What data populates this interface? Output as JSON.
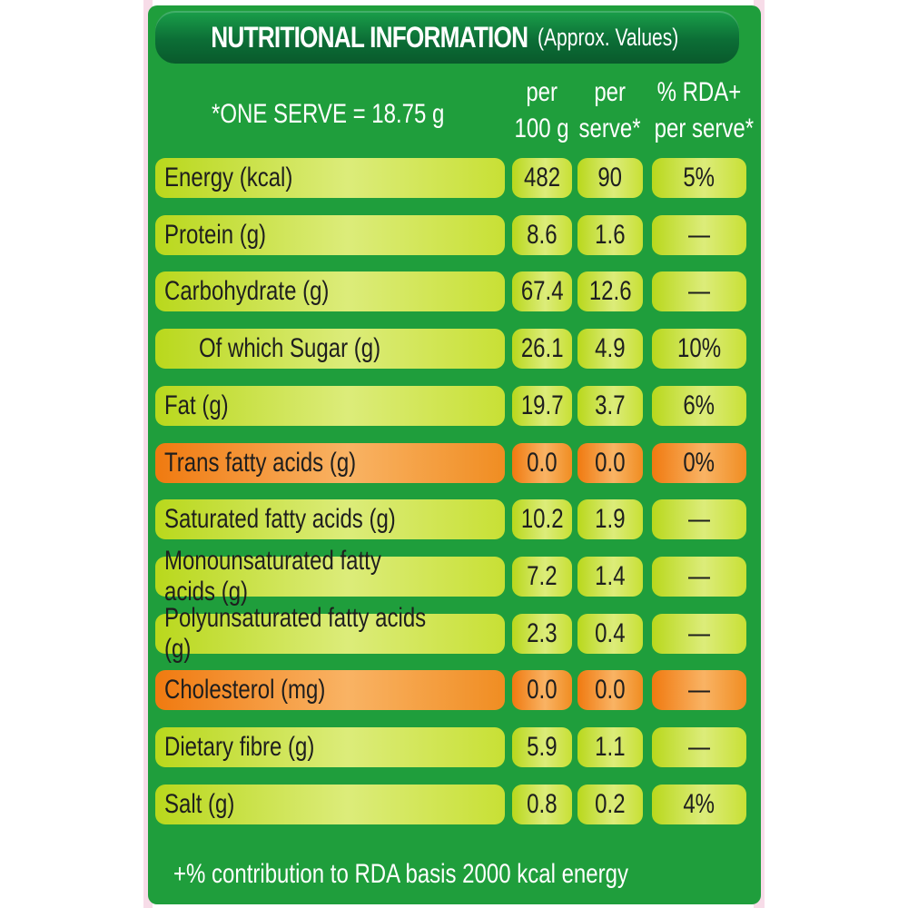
{
  "header": {
    "title": "NUTRITIONAL INFORMATION",
    "subtitle": "(Approx. Values)"
  },
  "serve_note": "*ONE SERVE = 18.75 g",
  "columns": {
    "per100_line1": "per",
    "per100_line2": "100 g",
    "perserve_line1": "per",
    "perserve_line2": "serve*",
    "rda_line1": "% RDA+",
    "rda_line2": "per serve*"
  },
  "rows": [
    {
      "label": "Energy (kcal)",
      "per100": "482",
      "perserve": "90",
      "rda": "5%",
      "highlight": false,
      "indent": false
    },
    {
      "label": "Protein (g)",
      "per100": "8.6",
      "perserve": "1.6",
      "rda": "—",
      "highlight": false,
      "indent": false
    },
    {
      "label": "Carbohydrate (g)",
      "per100": "67.4",
      "perserve": "12.6",
      "rda": "—",
      "highlight": false,
      "indent": false
    },
    {
      "label": "Of which Sugar (g)",
      "per100": "26.1",
      "perserve": "4.9",
      "rda": "10%",
      "highlight": false,
      "indent": true
    },
    {
      "label": "Fat (g)",
      "per100": "19.7",
      "perserve": "3.7",
      "rda": "6%",
      "highlight": false,
      "indent": false
    },
    {
      "label": "Trans fatty acids (g)",
      "per100": "0.0",
      "perserve": "0.0",
      "rda": "0%",
      "highlight": true,
      "indent": false
    },
    {
      "label": "Saturated fatty acids (g)",
      "per100": "10.2",
      "perserve": "1.9",
      "rda": "—",
      "highlight": false,
      "indent": false
    },
    {
      "label": "Monounsaturated fatty acids (g)",
      "per100": "7.2",
      "perserve": "1.4",
      "rda": "—",
      "highlight": false,
      "indent": false
    },
    {
      "label": "Polyunsaturated fatty acids (g)",
      "per100": "2.3",
      "perserve": "0.4",
      "rda": "—",
      "highlight": false,
      "indent": false
    },
    {
      "label": "Cholesterol (mg)",
      "per100": "0.0",
      "perserve": "0.0",
      "rda": "—",
      "highlight": true,
      "indent": false
    },
    {
      "label": "Dietary fibre (g)",
      "per100": "5.9",
      "perserve": "1.1",
      "rda": "—",
      "highlight": false,
      "indent": false
    },
    {
      "label": "Salt (g)",
      "per100": "0.8",
      "perserve": "0.2",
      "rda": "4%",
      "highlight": false,
      "indent": false
    }
  ],
  "footnote": "+% contribution to RDA basis 2000 kcal energy",
  "colors": {
    "panel_green": "#1f9e3c",
    "header_green": "#0c6e36",
    "cell_lime": "#c8e035",
    "cell_orange": "#f08d22"
  }
}
